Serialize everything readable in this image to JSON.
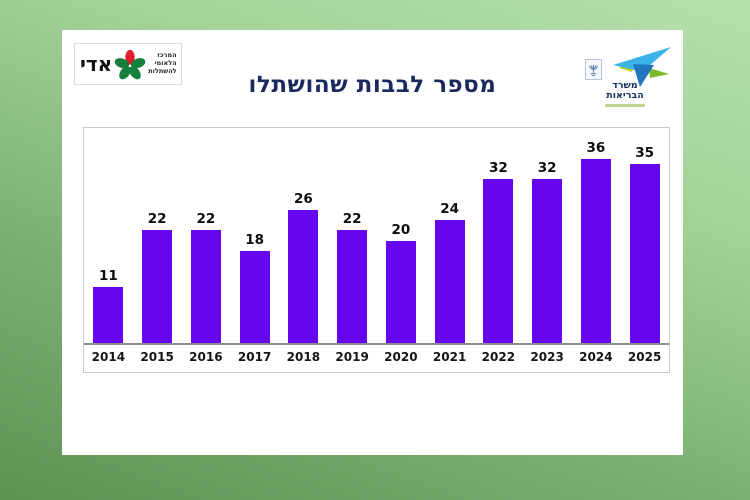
{
  "background": {
    "top_color": "#b6dfac",
    "bottom_color": "#5e9253"
  },
  "logos": {
    "adi": {
      "short_name": "אדי",
      "org_lines": [
        "המרכז",
        "הלאומי",
        "להשתלות"
      ],
      "clover_green": "#15803c",
      "clover_red": "#e11d2e"
    },
    "ministry": {
      "lines": [
        "משרד",
        "הבריאות"
      ],
      "navy": "#16315f",
      "star_colors": {
        "light_blue": "#3cb3e8",
        "dark_blue": "#2176bd",
        "green": "#7cb928",
        "lime": "#c3d21f"
      }
    }
  },
  "title": {
    "text": "מספר לבבות שהושתלו",
    "color": "#1b2a5e"
  },
  "chart_data": {
    "type": "bar",
    "title": "מספר לבבות שהושתלו",
    "categories": [
      "2014",
      "2015",
      "2016",
      "2017",
      "2018",
      "2019",
      "2020",
      "2021",
      "2022",
      "2023",
      "2024",
      "2025"
    ],
    "values": [
      11,
      22,
      22,
      18,
      26,
      22,
      20,
      24,
      32,
      32,
      36,
      35
    ],
    "xlabel": "",
    "ylabel": "",
    "ylim": [
      0,
      42
    ],
    "bar_color": "#6606ee",
    "value_label_color": "#0d0d0d",
    "axis_color": "#8c8c8c",
    "grid": false,
    "legend": null,
    "data_labels": true
  }
}
